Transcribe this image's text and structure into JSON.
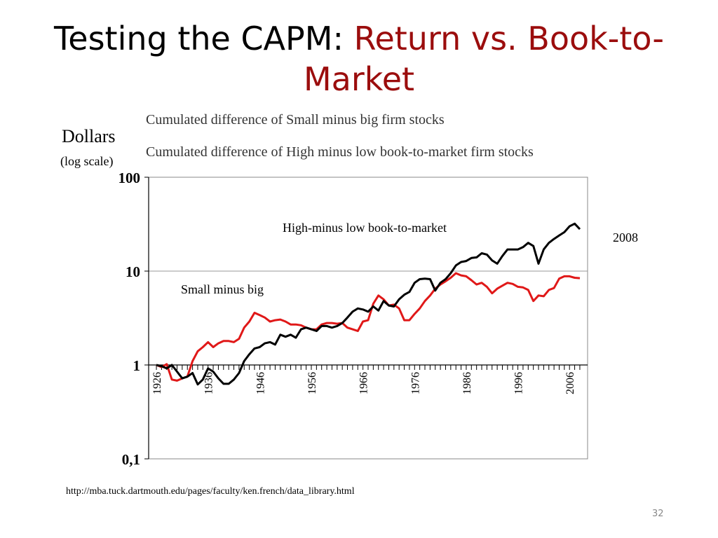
{
  "slide": {
    "title_prefix": "Testing the CAPM: ",
    "title_accent": "Return vs. Book-to-Market",
    "source_url": "http://mba.tuck.dartmouth.edu/pages/faculty/ken.french/data_library.html",
    "slide_number": "32",
    "accent_color": "#9b0d0d"
  },
  "chart_data": {
    "type": "line",
    "title": "",
    "subtitles": [
      "Cumulated difference  of Small minus big firm stocks",
      "Cumulated difference of High minus low book-to-market firm stocks"
    ],
    "ylabel": "Dollars",
    "ylabel_note": "(log scale)",
    "y_scale": "log",
    "ylim": [
      0.1,
      100
    ],
    "y_ticks": [
      {
        "value": 100,
        "label": "100"
      },
      {
        "value": 10,
        "label": "10"
      },
      {
        "value": 1,
        "label": "1"
      },
      {
        "value": 0.1,
        "label": "0,1"
      }
    ],
    "xlim": [
      1926,
      2008
    ],
    "x_ticks": [
      1926,
      1936,
      1946,
      1956,
      1966,
      1976,
      1986,
      1996,
      2006
    ],
    "grid": "horizontal at 10",
    "annotations": [
      {
        "text": "High-minus low book-to-market",
        "x": 1960,
        "y": 26
      },
      {
        "text": "Small minus big",
        "x": 1931,
        "y": 7
      },
      {
        "text": "2008",
        "x": 2008,
        "y": 18
      }
    ],
    "series": [
      {
        "name": "Small minus big",
        "color": "#e01818",
        "x": [
          1926,
          1927,
          1928,
          1929,
          1930,
          1931,
          1932,
          1933,
          1934,
          1935,
          1936,
          1937,
          1938,
          1939,
          1940,
          1941,
          1942,
          1943,
          1944,
          1945,
          1946,
          1947,
          1948,
          1949,
          1950,
          1951,
          1952,
          1953,
          1954,
          1955,
          1956,
          1957,
          1958,
          1959,
          1960,
          1961,
          1962,
          1963,
          1964,
          1965,
          1966,
          1967,
          1968,
          1969,
          1970,
          1971,
          1972,
          1973,
          1974,
          1975,
          1976,
          1977,
          1978,
          1979,
          1980,
          1981,
          1982,
          1983,
          1984,
          1985,
          1986,
          1987,
          1988,
          1989,
          1990,
          1991,
          1992,
          1993,
          1994,
          1995,
          1996,
          1997,
          1998,
          1999,
          2000,
          2001,
          2002,
          2003,
          2004,
          2005,
          2006,
          2007,
          2008
        ],
        "values": [
          1.0,
          0.95,
          1.02,
          0.7,
          0.68,
          0.72,
          0.75,
          1.1,
          1.4,
          1.55,
          1.75,
          1.55,
          1.7,
          1.8,
          1.8,
          1.75,
          1.9,
          2.5,
          2.9,
          3.6,
          3.4,
          3.2,
          2.9,
          3.0,
          3.05,
          2.9,
          2.7,
          2.7,
          2.65,
          2.5,
          2.4,
          2.4,
          2.7,
          2.8,
          2.8,
          2.75,
          2.8,
          2.5,
          2.4,
          2.3,
          2.9,
          3.0,
          4.5,
          5.5,
          5.0,
          4.3,
          4.4,
          4.0,
          3.0,
          3.0,
          3.5,
          4.0,
          4.8,
          5.5,
          6.5,
          7.2,
          7.8,
          8.5,
          9.5,
          9.0,
          8.8,
          8.0,
          7.2,
          7.5,
          6.8,
          5.8,
          6.5,
          7.0,
          7.5,
          7.3,
          6.8,
          6.7,
          6.3,
          4.8,
          5.5,
          5.4,
          6.3,
          6.6,
          8.3,
          8.8,
          8.8,
          8.5,
          8.4
        ]
      },
      {
        "name": "High-minus low book-to-market",
        "color": "#000000",
        "x": [
          1926,
          1927,
          1928,
          1929,
          1930,
          1931,
          1932,
          1933,
          1934,
          1935,
          1936,
          1937,
          1938,
          1939,
          1940,
          1941,
          1942,
          1943,
          1944,
          1945,
          1946,
          1947,
          1948,
          1949,
          1950,
          1951,
          1952,
          1953,
          1954,
          1955,
          1956,
          1957,
          1958,
          1959,
          1960,
          1961,
          1962,
          1963,
          1964,
          1965,
          1966,
          1967,
          1968,
          1969,
          1970,
          1971,
          1972,
          1973,
          1974,
          1975,
          1976,
          1977,
          1978,
          1979,
          1980,
          1981,
          1982,
          1983,
          1984,
          1985,
          1986,
          1987,
          1988,
          1989,
          1990,
          1991,
          1992,
          1993,
          1994,
          1995,
          1996,
          1997,
          1998,
          1999,
          2000,
          2001,
          2002,
          2003,
          2004,
          2005,
          2006,
          2007,
          2008
        ],
        "values": [
          1.0,
          0.97,
          0.92,
          1.0,
          0.85,
          0.72,
          0.75,
          0.82,
          0.62,
          0.7,
          0.92,
          0.85,
          0.72,
          0.63,
          0.63,
          0.7,
          0.82,
          1.1,
          1.3,
          1.5,
          1.55,
          1.7,
          1.75,
          1.65,
          2.1,
          2.0,
          2.1,
          1.95,
          2.4,
          2.5,
          2.4,
          2.3,
          2.6,
          2.6,
          2.5,
          2.6,
          2.8,
          3.2,
          3.7,
          4.0,
          3.9,
          3.7,
          4.2,
          3.8,
          4.8,
          4.3,
          4.2,
          5.0,
          5.6,
          6.0,
          7.5,
          8.2,
          8.3,
          8.2,
          6.2,
          7.5,
          8.2,
          9.5,
          11.5,
          12.5,
          12.8,
          13.8,
          14.0,
          15.5,
          15.0,
          13.0,
          12.0,
          14.5,
          17.0,
          17.0,
          17.0,
          18.0,
          20.0,
          18.5,
          12.0,
          17.0,
          20.0,
          22.0,
          24.0,
          26.0,
          30.0,
          32.0,
          28.0
        ]
      }
    ]
  }
}
